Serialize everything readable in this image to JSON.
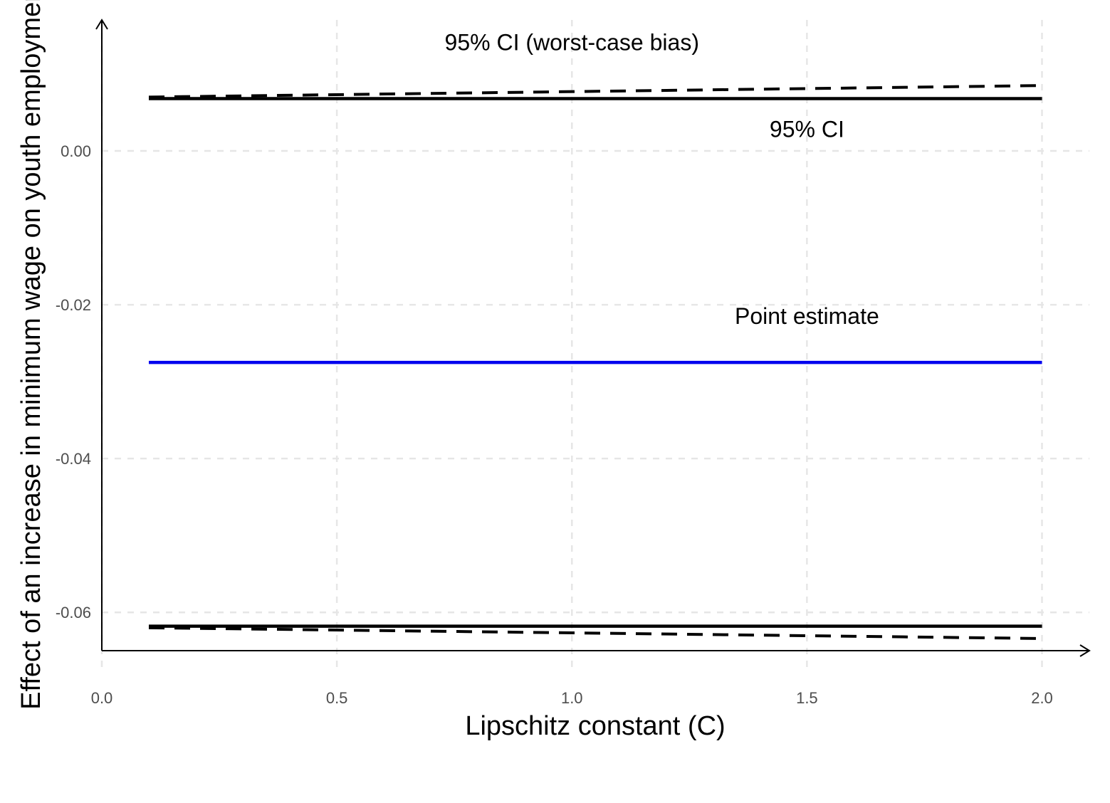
{
  "chart_data": {
    "type": "line",
    "xlabel": "Lipschitz constant (C)",
    "ylabel": "Effect of an increase in minimum wage on youth employment",
    "xlim": [
      0.0,
      2.1
    ],
    "ylim": [
      -0.065,
      0.017
    ],
    "x_ticks": [
      0.0,
      0.5,
      1.0,
      1.5,
      2.0
    ],
    "x_tick_labels": [
      "0.0",
      "0.5",
      "1.0",
      "1.5",
      "2.0"
    ],
    "y_ticks": [
      0.0,
      -0.02,
      -0.04,
      -0.06
    ],
    "y_tick_labels": [
      "0.00",
      "-0.02",
      "-0.04",
      "-0.06"
    ],
    "grid": true,
    "legend": "none",
    "x": [
      0.1,
      2.0
    ],
    "series": [
      {
        "key": "ci_upper",
        "values": [
          0.0068,
          0.0068
        ],
        "color": "#000000",
        "dash": "solid"
      },
      {
        "key": "ci_lower",
        "values": [
          -0.0618,
          -0.0618
        ],
        "color": "#000000",
        "dash": "solid"
      },
      {
        "key": "ci_wc_upper",
        "values": [
          0.007,
          0.0085
        ],
        "color": "#000000",
        "dash": "dashed"
      },
      {
        "key": "ci_wc_lower",
        "values": [
          -0.062,
          -0.0634
        ],
        "color": "#000000",
        "dash": "dashed"
      },
      {
        "key": "point_estimate",
        "values": [
          -0.0275,
          -0.0275
        ],
        "color": "#0000ee",
        "dash": "solid"
      }
    ],
    "annotations": [
      {
        "text": "95% CI (worst-case bias)",
        "x": 1.0,
        "y": 0.0131
      },
      {
        "text": "95% CI",
        "x": 1.5,
        "y": 0.0018
      },
      {
        "text": "Point estimate",
        "x": 1.5,
        "y": -0.0225
      }
    ]
  }
}
